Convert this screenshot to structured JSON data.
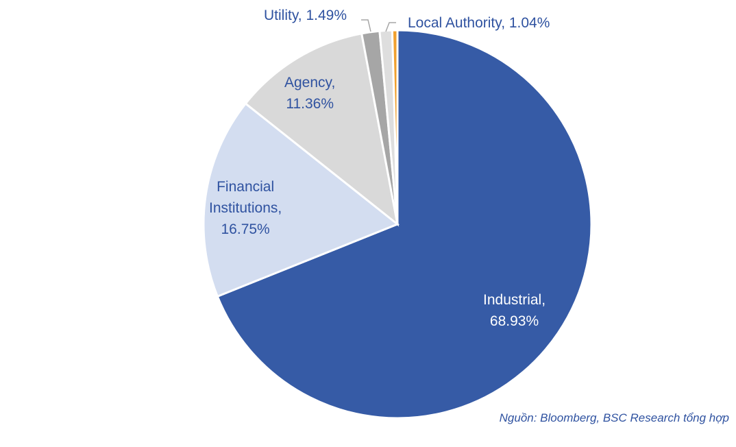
{
  "chart_data": {
    "type": "pie",
    "start_angle": "12 o'clock",
    "direction": "clockwise",
    "slices": [
      {
        "name": "Industrial",
        "value": 68.93,
        "label": "Industrial,",
        "value_label": "68.93%",
        "color": "#365BA6"
      },
      {
        "name": "Financial Institutions",
        "value": 16.75,
        "label": "Financial Institutions,",
        "value_label": "16.75%",
        "color": "#D3DDF0"
      },
      {
        "name": "Agency",
        "value": 11.36,
        "label": "Agency,",
        "value_label": "11.36%",
        "color": "#D9D9D9"
      },
      {
        "name": "Utility",
        "value": 1.49,
        "label": "Utility, 1.49%",
        "color": "#A6A6A6"
      },
      {
        "name": "Local Authority",
        "value": 1.04,
        "label": "Local Authority, 1.04%",
        "color": "#DEDEDE"
      },
      {
        "name": "",
        "value": 0.43,
        "color": "#F0A030"
      }
    ]
  },
  "labels": {
    "financial_line1": "Financial",
    "financial_line2": "Institutions,"
  },
  "source": "Nguồn: Bloomberg, BSC Research tổng hợp"
}
